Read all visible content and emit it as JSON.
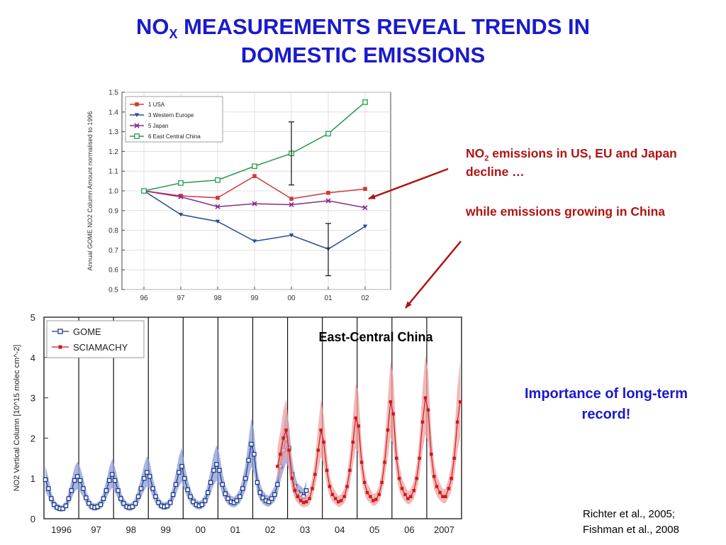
{
  "slide": {
    "title_pre": "NO",
    "title_sub": "X",
    "title_post": " MEASUREMENTS REVEAL TRENDS IN",
    "title_line2": "DOMESTIC EMISSIONS",
    "note1_pre": "NO",
    "note1_sub": "2",
    "note1_post": " emissions in US, EU and Japan decline …",
    "note2": "while emissions growing in China",
    "importance": "Importance of long-term record!",
    "citation_line1": "Richter et al., 2005;",
    "citation_line2": "Fishman et al., 2008"
  },
  "colors": {
    "title": "#1a1acc",
    "note": "#b01414",
    "usa": "#d03838",
    "western_europe": "#2a4a9a",
    "japan": "#8a2a8a",
    "east_central_china": "#2a9a4a",
    "gome": "#1e3a8a",
    "gome_band": "#8c9cd8",
    "sciamachy": "#cc1a1a",
    "sciamachy_band": "#f0a0a0"
  },
  "chart_data": [
    {
      "type": "line",
      "ylabel": "Annual GOME NO2 Column Amount normalised to 1996",
      "x": [
        "96",
        "97",
        "98",
        "99",
        "00",
        "01",
        "02"
      ],
      "ylim": [
        0.5,
        1.5
      ],
      "yticks": [
        "0.5",
        "0.6",
        "0.7",
        "0.8",
        "0.9",
        "1.0",
        "1.1",
        "1.2",
        "1.3",
        "1.4",
        "1.5"
      ],
      "legend_position": "top-left",
      "series": [
        {
          "name": "1 USA",
          "marker": "square",
          "values": [
            1.0,
            0.975,
            0.965,
            1.075,
            0.96,
            0.99,
            1.01
          ]
        },
        {
          "name": "3 Western Europe",
          "marker": "triangle-down",
          "values": [
            1.0,
            0.88,
            0.845,
            0.745,
            0.775,
            0.705,
            0.82
          ]
        },
        {
          "name": "5 Japan",
          "marker": "x",
          "values": [
            1.0,
            0.97,
            0.92,
            0.935,
            0.93,
            0.95,
            0.915
          ]
        },
        {
          "name": "6 East Central China",
          "marker": "open-square",
          "values": [
            1.0,
            1.04,
            1.055,
            1.125,
            1.19,
            1.29,
            1.45
          ]
        }
      ],
      "error_bars": [
        {
          "x": "00",
          "low": 1.03,
          "high": 1.35
        },
        {
          "x": "01",
          "low": 0.57,
          "high": 0.835
        }
      ]
    },
    {
      "type": "line",
      "title": "East-Central China",
      "ylabel": "NO2 Vertical Column [10^15 molec cm^-2]",
      "ylim": [
        0,
        5
      ],
      "yticks": [
        "0",
        "1",
        "2",
        "3",
        "4",
        "5"
      ],
      "xlim": [
        1996,
        2008
      ],
      "xtick_labels": [
        "1996",
        "97",
        "98",
        "99",
        "00",
        "01",
        "02",
        "03",
        "04",
        "05",
        "06",
        "2007"
      ],
      "legend_position": "top-left",
      "series": [
        {
          "name": "GOME",
          "x": [
            1996.04,
            1996.13,
            1996.21,
            1996.29,
            1996.38,
            1996.46,
            1996.54,
            1996.63,
            1996.71,
            1996.79,
            1996.88,
            1996.96,
            1997.04,
            1997.13,
            1997.21,
            1997.29,
            1997.38,
            1997.46,
            1997.54,
            1997.63,
            1997.71,
            1997.79,
            1997.88,
            1997.96,
            1998.04,
            1998.13,
            1998.21,
            1998.29,
            1998.38,
            1998.46,
            1998.54,
            1998.63,
            1998.71,
            1998.79,
            1998.88,
            1998.96,
            1999.04,
            1999.13,
            1999.21,
            1999.29,
            1999.38,
            1999.46,
            1999.54,
            1999.63,
            1999.71,
            1999.79,
            1999.88,
            1999.96,
            2000.04,
            2000.13,
            2000.21,
            2000.29,
            2000.38,
            2000.46,
            2000.54,
            2000.63,
            2000.71,
            2000.79,
            2000.88,
            2000.96,
            2001.04,
            2001.13,
            2001.21,
            2001.29,
            2001.38,
            2001.46,
            2001.54,
            2001.63,
            2001.71,
            2001.79,
            2001.88,
            2001.96,
            2002.04,
            2002.13,
            2002.21,
            2002.29,
            2002.38,
            2002.46,
            2002.54,
            2002.63,
            2002.71,
            2002.79,
            2002.88,
            2002.96,
            2003.04,
            2003.13,
            2003.21,
            2003.29,
            2003.38,
            2003.46,
            2003.54
          ],
          "values": [
            0.97,
            0.75,
            0.5,
            0.35,
            0.28,
            0.25,
            0.25,
            0.32,
            0.5,
            0.7,
            0.95,
            1.05,
            0.95,
            0.75,
            0.52,
            0.38,
            0.3,
            0.28,
            0.3,
            0.35,
            0.5,
            0.7,
            0.95,
            1.1,
            0.95,
            0.7,
            0.5,
            0.38,
            0.3,
            0.28,
            0.3,
            0.38,
            0.55,
            0.75,
            1.0,
            1.15,
            1.05,
            0.75,
            0.55,
            0.4,
            0.32,
            0.3,
            0.32,
            0.4,
            0.6,
            0.85,
            1.15,
            1.3,
            1.0,
            0.72,
            0.55,
            0.42,
            0.35,
            0.32,
            0.35,
            0.45,
            0.65,
            0.9,
            1.2,
            1.35,
            1.2,
            0.85,
            0.62,
            0.5,
            0.42,
            0.4,
            0.45,
            0.55,
            0.75,
            1.0,
            1.45,
            1.85,
            1.6,
            0.9,
            0.65,
            0.52,
            0.45,
            0.42,
            0.5,
            0.6,
            0.85,
            1.3,
            1.7,
            1.98,
            1.75,
            1.1,
            0.8,
            0.65,
            0.6,
            0.55,
            0.7
          ]
        },
        {
          "name": "SCIAMACHY",
          "x": [
            2002.71,
            2002.79,
            2002.88,
            2002.96,
            2003.04,
            2003.13,
            2003.21,
            2003.29,
            2003.38,
            2003.46,
            2003.54,
            2003.63,
            2003.71,
            2003.79,
            2003.88,
            2003.96,
            2004.04,
            2004.13,
            2004.21,
            2004.29,
            2004.38,
            2004.46,
            2004.54,
            2004.63,
            2004.71,
            2004.79,
            2004.88,
            2004.96,
            2005.04,
            2005.13,
            2005.21,
            2005.29,
            2005.38,
            2005.46,
            2005.54,
            2005.63,
            2005.71,
            2005.79,
            2005.88,
            2005.96,
            2006.04,
            2006.13,
            2006.21,
            2006.29,
            2006.38,
            2006.46,
            2006.54,
            2006.63,
            2006.71,
            2006.79,
            2006.88,
            2006.96,
            2007.04,
            2007.13,
            2007.21,
            2007.29,
            2007.38,
            2007.46,
            2007.54,
            2007.63,
            2007.71,
            2007.79,
            2007.88,
            2007.96
          ],
          "values": [
            1.3,
            1.6,
            2.0,
            2.2,
            1.7,
            1.0,
            0.7,
            0.55,
            0.45,
            0.4,
            0.42,
            0.5,
            0.75,
            1.1,
            1.7,
            2.2,
            1.9,
            1.2,
            0.8,
            0.6,
            0.5,
            0.42,
            0.45,
            0.55,
            0.8,
            1.2,
            1.9,
            2.5,
            2.3,
            1.4,
            0.9,
            0.65,
            0.55,
            0.45,
            0.48,
            0.6,
            0.9,
            1.4,
            2.2,
            2.9,
            2.6,
            1.5,
            1.0,
            0.75,
            0.6,
            0.5,
            0.55,
            0.7,
            1.0,
            1.5,
            2.4,
            3.0,
            2.7,
            1.6,
            1.05,
            0.8,
            0.65,
            0.55,
            0.55,
            0.75,
            1.0,
            1.5,
            2.4,
            2.9
          ]
        }
      ]
    }
  ]
}
